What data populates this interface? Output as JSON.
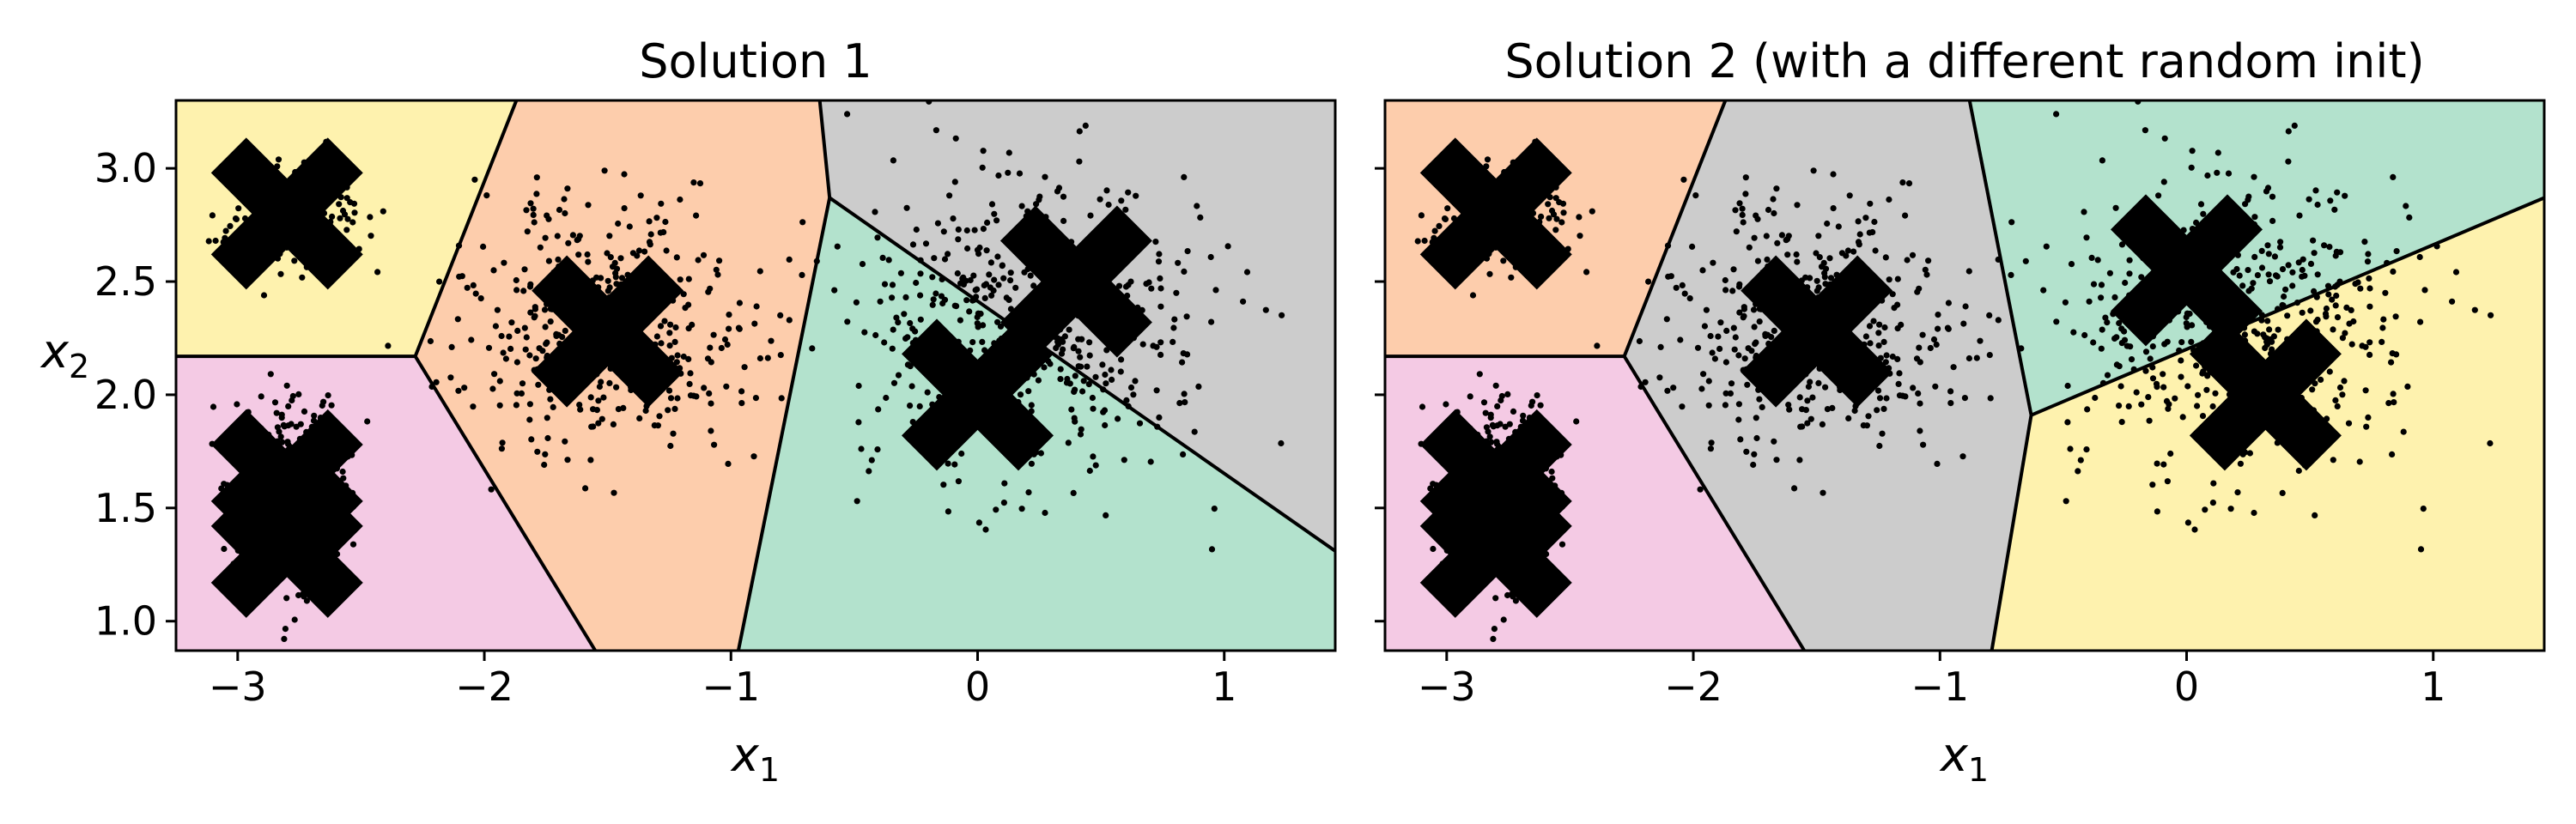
{
  "chart_data": [
    {
      "type": "scatter",
      "title": "Solution 1",
      "xlabel": "x",
      "xlabel_sub": "1",
      "ylabel": "x",
      "ylabel_sub": "2",
      "xlim": [
        -3.25,
        1.45
      ],
      "ylim": [
        0.87,
        3.3
      ],
      "xticks": [
        -3,
        -2,
        -1,
        0,
        1
      ],
      "yticks": [
        1.0,
        1.5,
        2.0,
        2.5,
        3.0
      ],
      "xtick_labels": [
        "−3",
        "−2",
        "−1",
        "0",
        "1"
      ],
      "ytick_labels": [
        "1.0",
        "1.5",
        "2.0",
        "2.5",
        "3.0"
      ],
      "show_ytick_labels": true,
      "clusters": [
        {
          "cx": -2.8,
          "cy": 2.8,
          "sx": 0.14,
          "sy": 0.11,
          "n": 220
        },
        {
          "cx": -2.8,
          "cy": 1.55,
          "sx": 0.12,
          "sy": 0.2,
          "n": 420
        },
        {
          "cx": -1.5,
          "cy": 2.3,
          "sx": 0.3,
          "sy": 0.3,
          "n": 400
        },
        {
          "cx": 0.2,
          "cy": 2.3,
          "sx": 0.35,
          "sy": 0.35,
          "n": 500
        }
      ],
      "centroids": [
        {
          "x": -2.8,
          "y": 2.8
        },
        {
          "x": -2.8,
          "y": 1.6
        },
        {
          "x": -2.8,
          "y": 1.35
        },
        {
          "x": -1.5,
          "y": 2.28
        },
        {
          "x": 0.4,
          "y": 2.5
        },
        {
          "x": 0.0,
          "y": 2.0
        }
      ],
      "regions": [
        {
          "color": "#fef2ae",
          "polygon": [
            [
              -3.25,
              3.3
            ],
            [
              -1.87,
              3.3
            ],
            [
              -2.28,
              2.17
            ],
            [
              -3.25,
              2.17
            ]
          ]
        },
        {
          "color": "#f4cae4",
          "polygon": [
            [
              -3.25,
              2.17
            ],
            [
              -2.28,
              2.17
            ],
            [
              -1.55,
              0.87
            ],
            [
              -3.25,
              0.87
            ]
          ]
        },
        {
          "color": "#fdcdac",
          "polygon": [
            [
              -1.87,
              3.3
            ],
            [
              -0.64,
              3.3
            ],
            [
              -0.6,
              2.87
            ],
            [
              -0.97,
              0.87
            ],
            [
              -1.55,
              0.87
            ],
            [
              -2.28,
              2.17
            ]
          ]
        },
        {
          "color": "#cccccc",
          "polygon": [
            [
              -0.64,
              3.3
            ],
            [
              1.45,
              3.3
            ],
            [
              1.45,
              1.31
            ],
            [
              -0.6,
              2.87
            ]
          ]
        },
        {
          "color": "#b3e2cd",
          "polygon": [
            [
              -0.6,
              2.87
            ],
            [
              1.45,
              1.31
            ],
            [
              1.45,
              0.87
            ],
            [
              -0.97,
              0.87
            ]
          ]
        }
      ],
      "boundaries": [
        [
          [
            -3.25,
            2.17
          ],
          [
            -2.28,
            2.17
          ]
        ],
        [
          [
            -2.28,
            2.17
          ],
          [
            -1.87,
            3.3
          ]
        ],
        [
          [
            -2.28,
            2.17
          ],
          [
            -1.55,
            0.87
          ]
        ],
        [
          [
            -0.64,
            3.3
          ],
          [
            -0.6,
            2.87
          ]
        ],
        [
          [
            -0.6,
            2.87
          ],
          [
            -0.97,
            0.87
          ]
        ],
        [
          [
            -0.6,
            2.87
          ],
          [
            1.45,
            1.31
          ]
        ]
      ]
    },
    {
      "type": "scatter",
      "title": "Solution 2 (with a different random init)",
      "xlabel": "x",
      "xlabel_sub": "1",
      "ylabel": "",
      "ylabel_sub": "",
      "xlim": [
        -3.25,
        1.45
      ],
      "ylim": [
        0.87,
        3.3
      ],
      "xticks": [
        -3,
        -2,
        -1,
        0,
        1
      ],
      "yticks": [
        1.0,
        1.5,
        2.0,
        2.5,
        3.0
      ],
      "xtick_labels": [
        "−3",
        "−2",
        "−1",
        "0",
        "1"
      ],
      "ytick_labels": [
        "",
        "",
        "",
        "",
        ""
      ],
      "show_ytick_labels": false,
      "clusters": [
        {
          "cx": -2.8,
          "cy": 2.8,
          "sx": 0.14,
          "sy": 0.11,
          "n": 220
        },
        {
          "cx": -2.8,
          "cy": 1.55,
          "sx": 0.12,
          "sy": 0.2,
          "n": 420
        },
        {
          "cx": -1.5,
          "cy": 2.3,
          "sx": 0.3,
          "sy": 0.3,
          "n": 400
        },
        {
          "cx": 0.2,
          "cy": 2.3,
          "sx": 0.35,
          "sy": 0.35,
          "n": 500
        }
      ],
      "centroids": [
        {
          "x": -2.8,
          "y": 2.8
        },
        {
          "x": -2.8,
          "y": 1.6
        },
        {
          "x": -2.8,
          "y": 1.35
        },
        {
          "x": -1.5,
          "y": 2.28
        },
        {
          "x": 0.0,
          "y": 2.55
        },
        {
          "x": 0.32,
          "y": 2.0
        }
      ],
      "regions": [
        {
          "color": "#fdcdac",
          "polygon": [
            [
              -3.25,
              3.3
            ],
            [
              -1.87,
              3.3
            ],
            [
              -2.28,
              2.17
            ],
            [
              -3.25,
              2.17
            ]
          ]
        },
        {
          "color": "#f4cae4",
          "polygon": [
            [
              -3.25,
              2.17
            ],
            [
              -2.28,
              2.17
            ],
            [
              -1.55,
              0.87
            ],
            [
              -3.25,
              0.87
            ]
          ]
        },
        {
          "color": "#cccccc",
          "polygon": [
            [
              -1.87,
              3.3
            ],
            [
              -0.88,
              3.3
            ],
            [
              -0.63,
              1.91
            ],
            [
              -0.79,
              0.87
            ],
            [
              -1.55,
              0.87
            ],
            [
              -2.28,
              2.17
            ]
          ]
        },
        {
          "color": "#b3e2cd",
          "polygon": [
            [
              -0.88,
              3.3
            ],
            [
              1.45,
              3.3
            ],
            [
              1.45,
              2.87
            ],
            [
              -0.63,
              1.91
            ]
          ]
        },
        {
          "color": "#fef2ae",
          "polygon": [
            [
              -0.63,
              1.91
            ],
            [
              1.45,
              2.87
            ],
            [
              1.45,
              0.87
            ],
            [
              -0.79,
              0.87
            ]
          ]
        }
      ],
      "boundaries": [
        [
          [
            -3.25,
            2.17
          ],
          [
            -2.28,
            2.17
          ]
        ],
        [
          [
            -2.28,
            2.17
          ],
          [
            -1.87,
            3.3
          ]
        ],
        [
          [
            -2.28,
            2.17
          ],
          [
            -1.55,
            0.87
          ]
        ],
        [
          [
            -0.88,
            3.3
          ],
          [
            -0.63,
            1.91
          ]
        ],
        [
          [
            -0.63,
            1.91
          ],
          [
            -0.79,
            0.87
          ]
        ],
        [
          [
            -0.63,
            1.91
          ],
          [
            1.45,
            2.87
          ]
        ]
      ]
    }
  ]
}
